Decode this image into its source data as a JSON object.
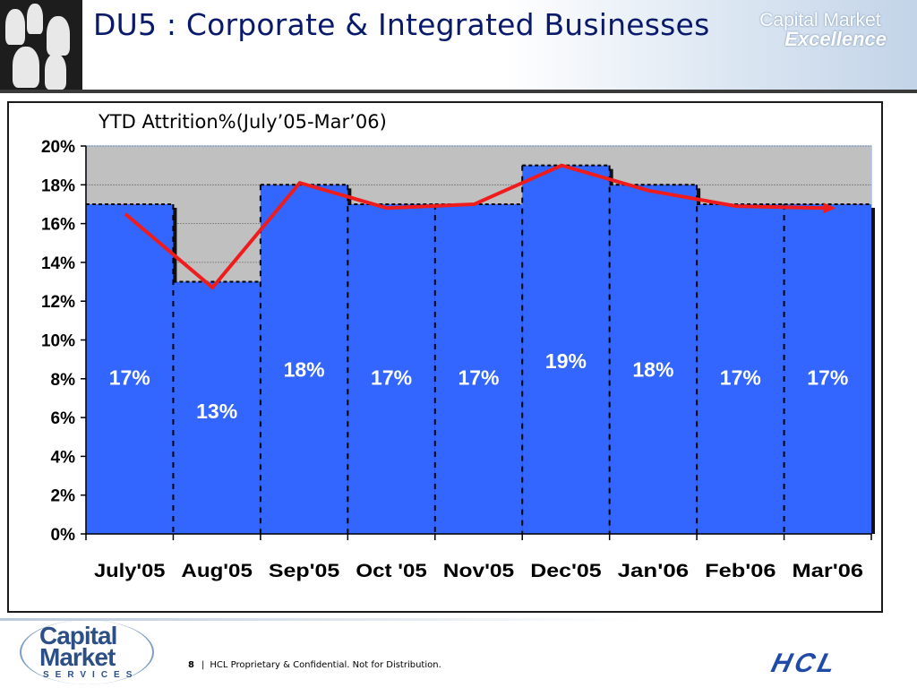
{
  "header": {
    "title": "DU5 : Corporate & Integrated Businesses",
    "brand_line1": "Capital Market",
    "brand_line2": "Excellence"
  },
  "chart_data": {
    "type": "bar",
    "title": "YTD Attrition%(July’05-Mar’06)",
    "categories": [
      "July'05",
      "Aug'05",
      "Sep'05",
      "Oct '05",
      "Nov'05",
      "Dec'05",
      "Jan'06",
      "Feb'06",
      "Mar'06"
    ],
    "values": [
      17,
      13,
      18,
      17,
      17,
      19,
      18,
      17,
      17
    ],
    "data_labels": [
      "17%",
      "13%",
      "18%",
      "17%",
      "17%",
      "19%",
      "18%",
      "17%",
      "17%"
    ],
    "trend_line": [
      16.5,
      12.7,
      18.1,
      16.8,
      17.0,
      19.0,
      17.7,
      16.9,
      16.8
    ],
    "ylim": [
      0,
      20
    ],
    "yticks": [
      "0%",
      "2%",
      "4%",
      "6%",
      "8%",
      "10%",
      "12%",
      "14%",
      "16%",
      "18%",
      "20%"
    ],
    "xlabel": "",
    "ylabel": "",
    "grid": true,
    "colors": {
      "bar": "#3366ff",
      "plot_background": "#c0c0c0",
      "trend": "#ee1c1c",
      "label": "#ffffff"
    }
  },
  "footer": {
    "page_number": "8",
    "separator": "|",
    "notice": "HCL Proprietary & Confidential. Not for Distribution.",
    "logo_line1": "Capital",
    "logo_line2": "Market",
    "logo_line3": "SERVICES",
    "hcl_logo": "HCL"
  }
}
